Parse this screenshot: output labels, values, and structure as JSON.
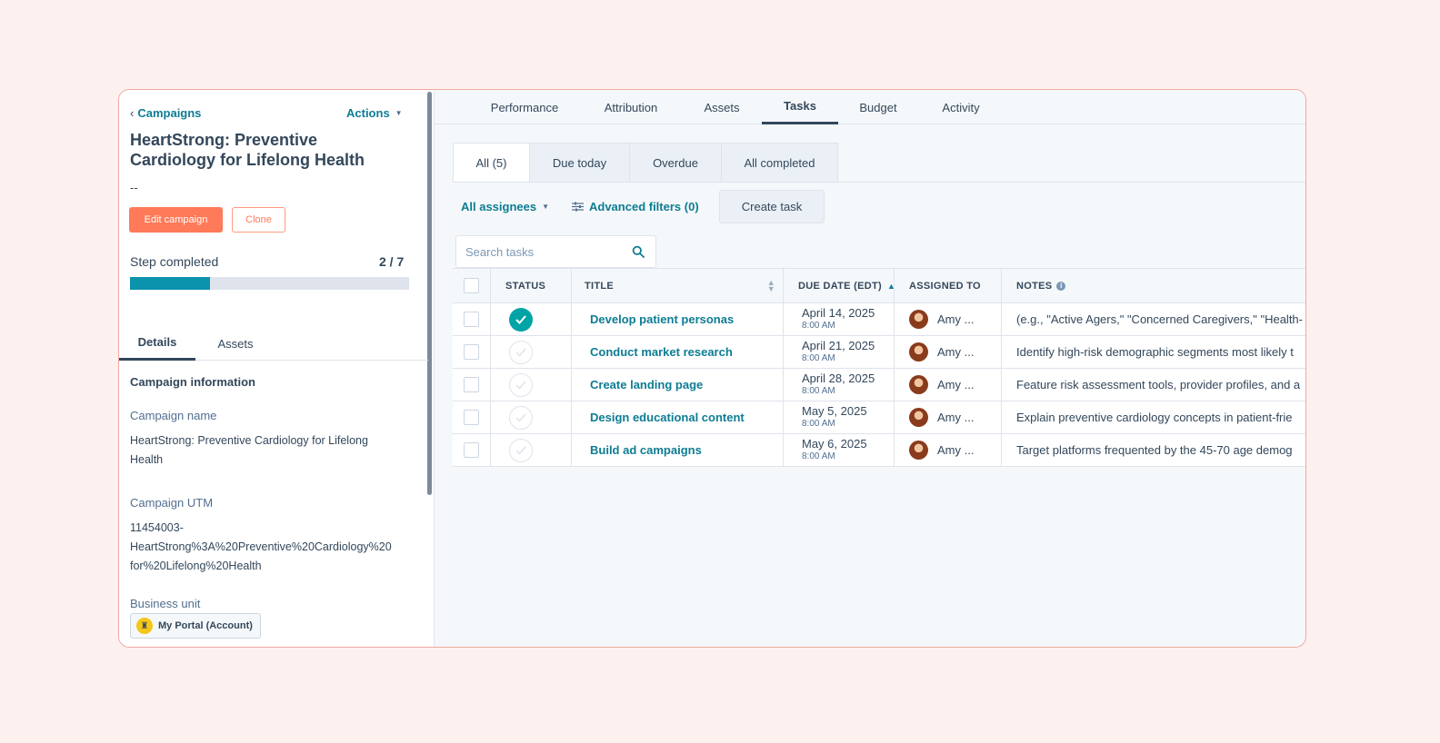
{
  "left_panel": {
    "back_label": "Campaigns",
    "actions_label": "Actions",
    "campaign_title": "HeartStrong: Preventive Cardiology for Lifelong Health",
    "dash": "--",
    "edit_button": "Edit campaign",
    "clone_button": "Clone",
    "step_label": "Step completed",
    "step_count": "2 / 7",
    "step_progress_fraction": 0.2857,
    "tabs": [
      "Details",
      "Assets"
    ],
    "section_title": "Campaign information",
    "fields": {
      "name_label": "Campaign name",
      "name_value": "HeartStrong: Preventive Cardiology for Lifelong Health",
      "utm_label": "Campaign UTM",
      "utm_value": "11454003-HeartStrong%3A%20Preventive%20Cardiology%20for%20Lifelong%20Health",
      "utm_line1": "11454003-",
      "utm_line2": "HeartStrong%3A%20Preventive%20Cardiology%20",
      "utm_line3": "for%20Lifelong%20Health",
      "bu_label": "Business unit",
      "bu_value": "My Portal (Account)"
    }
  },
  "top_nav": [
    "Performance",
    "Attribution",
    "Assets",
    "Tasks",
    "Budget",
    "Activity"
  ],
  "filter_tabs": [
    "All (5)",
    "Due today",
    "Overdue",
    "All completed"
  ],
  "toolbar": {
    "assignees": "All assignees",
    "advanced_filters": "Advanced filters (0)",
    "create_task": "Create task"
  },
  "search": {
    "placeholder": "Search tasks"
  },
  "table": {
    "headers": {
      "status": "STATUS",
      "title": "TITLE",
      "due": "DUE DATE (EDT)",
      "assigned": "ASSIGNED TO",
      "notes": "NOTES"
    },
    "rows": [
      {
        "completed": true,
        "title": "Develop patient personas",
        "date": "April 14, 2025",
        "time": "8:00 AM",
        "assignee": "Amy ...",
        "notes": "(e.g., \"Active Agers,\" \"Concerned Caregivers,\" \"Health-"
      },
      {
        "completed": false,
        "title": "Conduct market research",
        "date": "April 21, 2025",
        "time": "8:00 AM",
        "assignee": "Amy ...",
        "notes": "Identify high-risk demographic segments most likely t"
      },
      {
        "completed": false,
        "title": "Create landing page",
        "date": "April 28, 2025",
        "time": "8:00 AM",
        "assignee": "Amy ...",
        "notes": "Feature risk assessment tools, provider profiles, and a"
      },
      {
        "completed": false,
        "title": "Design educational content",
        "date": "May 5, 2025",
        "time": "8:00 AM",
        "assignee": "Amy ...",
        "notes": "Explain preventive cardiology concepts in patient-frie"
      },
      {
        "completed": false,
        "title": "Build ad campaigns",
        "date": "May 6, 2025",
        "time": "8:00 AM",
        "assignee": "Amy ...",
        "notes": "Target platforms frequented by the 45-70 age demog"
      }
    ]
  },
  "colors": {
    "accent": "#0d7c93",
    "primary_button": "#ff7a59",
    "progress": "#0b93ad",
    "status_done": "#00a4a6",
    "page_bg": "#fdf1f0"
  },
  "icons": {
    "back": "chevron-left-icon",
    "caret": "caret-down-icon",
    "filter": "sliders-icon",
    "search": "search-icon",
    "check": "check-icon",
    "sort": "sort-icon",
    "info": "info-icon",
    "business_unit": "account-icon"
  }
}
